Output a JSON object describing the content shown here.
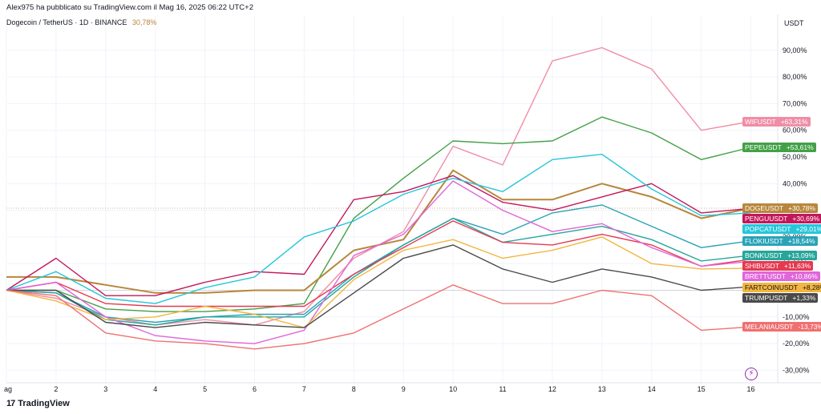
{
  "header": {
    "published": "Alex975 ha pubblicato su TradingView.com il Mag 16, 2025 06:22 UTC+2",
    "symbol": "Dogecoin / TetherUS · 1D · BINANCE",
    "symbol_change": "30,78%",
    "currency": "USDT"
  },
  "footer": {
    "brand": "TradingView",
    "logo": "17"
  },
  "icons": {
    "flash": "lightning-icon"
  },
  "chart_data": {
    "type": "line",
    "title": "Dogecoin / TetherUS · 1D · BINANCE",
    "x_ticks": [
      "ag",
      "2",
      "3",
      "4",
      "5",
      "6",
      "7",
      "8",
      "9",
      "10",
      "11",
      "12",
      "13",
      "14",
      "15",
      "16"
    ],
    "y_ticks": [
      "90,00%",
      "80,00%",
      "70,00%",
      "60,00%",
      "50,00%",
      "40,00%",
      "30,00%",
      "20,00%",
      "10,00%",
      "-10,00%",
      "-20,00%",
      "-30,00%"
    ],
    "y_tick_values": [
      90,
      80,
      70,
      60,
      50,
      40,
      30,
      20,
      10,
      -10,
      -20,
      -30
    ],
    "ylim": [
      -34,
      100
    ],
    "x": [
      1,
      2,
      3,
      4,
      5,
      6,
      7,
      8,
      9,
      10,
      11,
      12,
      13,
      14,
      15,
      16
    ],
    "reference_line": 30.78,
    "series": [
      {
        "name": "WIFUSDT",
        "label": "+63,31%",
        "color": "#f08da5",
        "values": [
          0,
          -3,
          -10,
          -13,
          -11,
          -13,
          -8,
          12,
          22,
          54,
          47,
          86,
          91,
          83,
          60,
          63.31
        ]
      },
      {
        "name": "PEPEUSDT",
        "label": "+53,61%",
        "color": "#43a047",
        "values": [
          0,
          0,
          -7,
          -8,
          -8,
          -7,
          -5,
          27,
          42,
          56,
          55,
          56,
          65,
          59,
          49,
          53.61
        ]
      },
      {
        "name": "DOGEUSDT",
        "label": "+30,78%",
        "color": "#b8863b",
        "values": [
          5,
          5,
          2,
          -1,
          -1,
          0,
          0,
          15,
          19,
          45,
          34,
          34,
          40,
          35,
          27,
          30.78
        ]
      },
      {
        "name": "PENGUUSDT",
        "label": "+30,69%",
        "color": "#c2185b",
        "values": [
          0,
          12,
          -2,
          -2,
          3,
          7,
          6,
          34,
          37,
          43,
          33,
          30,
          35,
          40,
          29,
          30.69
        ]
      },
      {
        "name": "POPCATUSDT",
        "label": "+29,01%",
        "color": "#26c6da",
        "values": [
          0,
          7,
          -3,
          -5,
          1,
          5,
          20,
          26,
          36,
          42,
          37,
          49,
          51,
          38,
          28,
          29.01
        ]
      },
      {
        "name": "FLOKIUSDT",
        "label": "+18,54%",
        "color": "#29a3b8",
        "values": [
          0,
          -1,
          -10,
          -12,
          -10,
          -9,
          -9,
          6,
          17,
          27,
          21,
          29,
          32,
          24,
          16,
          18.54
        ]
      },
      {
        "name": "BONKUSDT",
        "label": "+13,09%",
        "color": "#26a69a",
        "values": [
          0,
          -1,
          -11,
          -13,
          -10,
          -10,
          -10,
          5,
          17,
          27,
          18,
          21,
          24,
          19,
          11,
          13.09
        ]
      },
      {
        "name": "SHIBUSDT",
        "label": "+11,63%",
        "color": "#e53950",
        "values": [
          0,
          3,
          -5,
          -6,
          -6,
          -6,
          -6,
          6,
          16,
          26,
          18,
          17,
          21,
          17,
          9,
          11.63
        ]
      },
      {
        "name": "BRETTUSDT",
        "label": "+10,86%",
        "color": "#e066d9",
        "values": [
          0,
          3,
          -10,
          -17,
          -19,
          -20,
          -15,
          13,
          21,
          41,
          30,
          22,
          25,
          16,
          9,
          10.86
        ]
      },
      {
        "name": "FARTCOINUSDT",
        "label": "+8,28%",
        "color": "#f3b63f",
        "values": [
          0,
          -4,
          -11,
          -10,
          -6,
          -9,
          -14,
          4,
          15,
          19,
          12,
          15,
          20,
          10,
          8,
          8.28
        ]
      },
      {
        "name": "TRUMPUSDT",
        "label": "+1,33%",
        "color": "#4a4a4a",
        "values": [
          0,
          0,
          -12,
          -14,
          -12,
          -13,
          -14,
          -1,
          12,
          17,
          8,
          3,
          8,
          5,
          0,
          1.33
        ]
      },
      {
        "name": "MELANIAUSDT",
        "label": "-13,73%",
        "color": "#f07070",
        "values": [
          0,
          -2,
          -16,
          -19,
          -20,
          -22,
          -20,
          -16,
          -7,
          2,
          -5,
          -5,
          0,
          -2,
          -15,
          -13.73
        ]
      }
    ]
  }
}
